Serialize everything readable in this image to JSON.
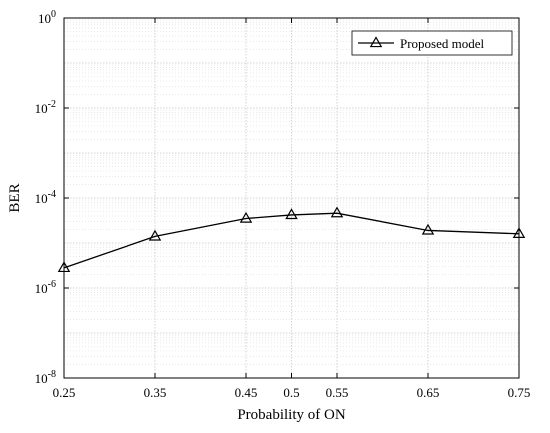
{
  "chart_data": {
    "type": "line",
    "xlabel": "Probability of ON",
    "ylabel": "BER",
    "x_ticks": [
      "0.25",
      "0.35",
      "0.45",
      "0.5",
      "0.55",
      "0.65",
      "0.75"
    ],
    "y_tick_exponents": [
      "0",
      "-2",
      "-4",
      "-6",
      "-8"
    ],
    "xlim": [
      0.25,
      0.75
    ],
    "ylim": [
      1e-08,
      1
    ],
    "yscale": "log",
    "grid": true,
    "legend_position": "top-right",
    "series": [
      {
        "name": "Proposed model",
        "marker": "triangle",
        "color": "#000000",
        "x": [
          0.25,
          0.35,
          0.45,
          0.5,
          0.55,
          0.65,
          0.75
        ],
        "y": [
          2.8e-06,
          1.4e-05,
          3.5e-05,
          4.2e-05,
          4.6e-05,
          1.9e-05,
          1.6e-05
        ]
      }
    ]
  }
}
